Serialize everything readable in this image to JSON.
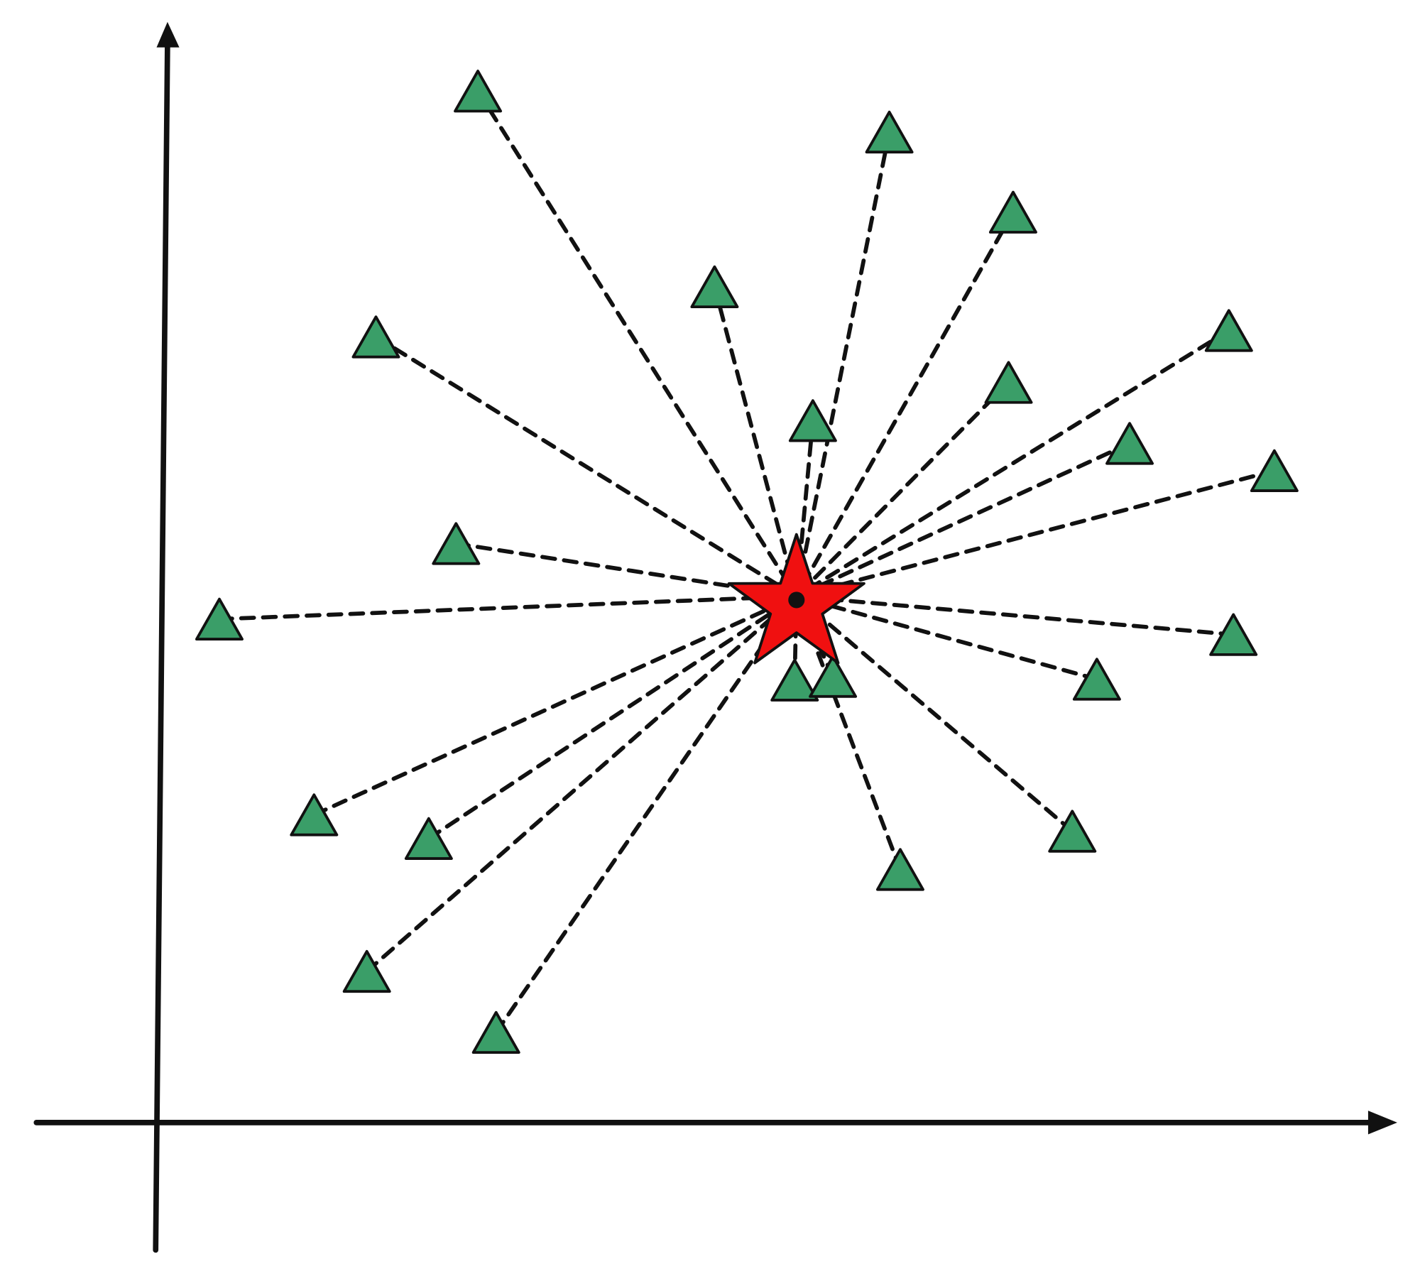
{
  "diagram": {
    "colors": {
      "background": "#ffffff",
      "point_fill": "#3a9e68",
      "point_stroke": "#111111",
      "center_fill": "#f01010",
      "center_stroke": "#111111",
      "connector": "#111111",
      "axis": "#111111"
    },
    "marks": {
      "points": "triangle",
      "center": "star",
      "connectors": "dashed-line"
    }
  }
}
